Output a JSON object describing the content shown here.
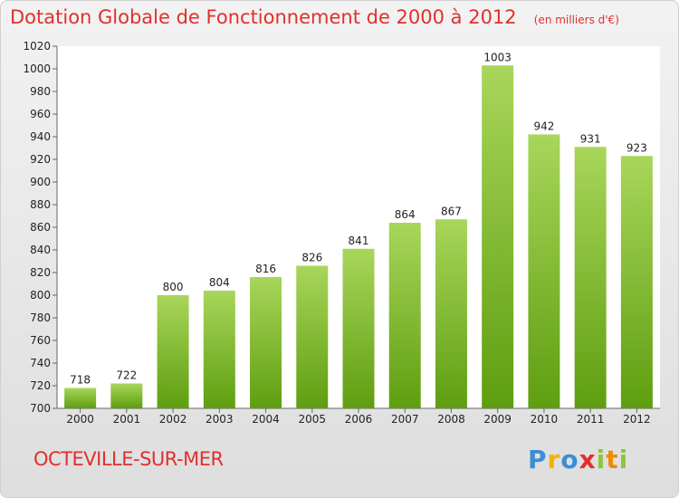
{
  "chart_data": {
    "type": "bar",
    "title": "Dotation Globale de Fonctionnement de 2000 à 2012",
    "subtitle": "(en milliers d'€)",
    "categories": [
      "2000",
      "2001",
      "2002",
      "2003",
      "2004",
      "2005",
      "2006",
      "2007",
      "2008",
      "2009",
      "2010",
      "2011",
      "2012"
    ],
    "values": [
      718,
      722,
      800,
      804,
      816,
      826,
      841,
      864,
      867,
      1003,
      942,
      931,
      923
    ],
    "ylim": [
      700,
      1020
    ],
    "yticks": [
      700,
      720,
      740,
      760,
      780,
      800,
      820,
      840,
      860,
      880,
      900,
      920,
      940,
      960,
      980,
      1000,
      1020
    ],
    "grid": false,
    "xlabel": "",
    "ylabel": ""
  },
  "commune": "OCTEVILLE-SUR-MER",
  "brand": "Proxiti",
  "colors": {
    "title": "#e0302d",
    "bar_light": "#a8d65a",
    "bar_dark": "#5f9e10",
    "plot_bg": "#ffffff",
    "axis": "#666666",
    "text": "#222222"
  }
}
